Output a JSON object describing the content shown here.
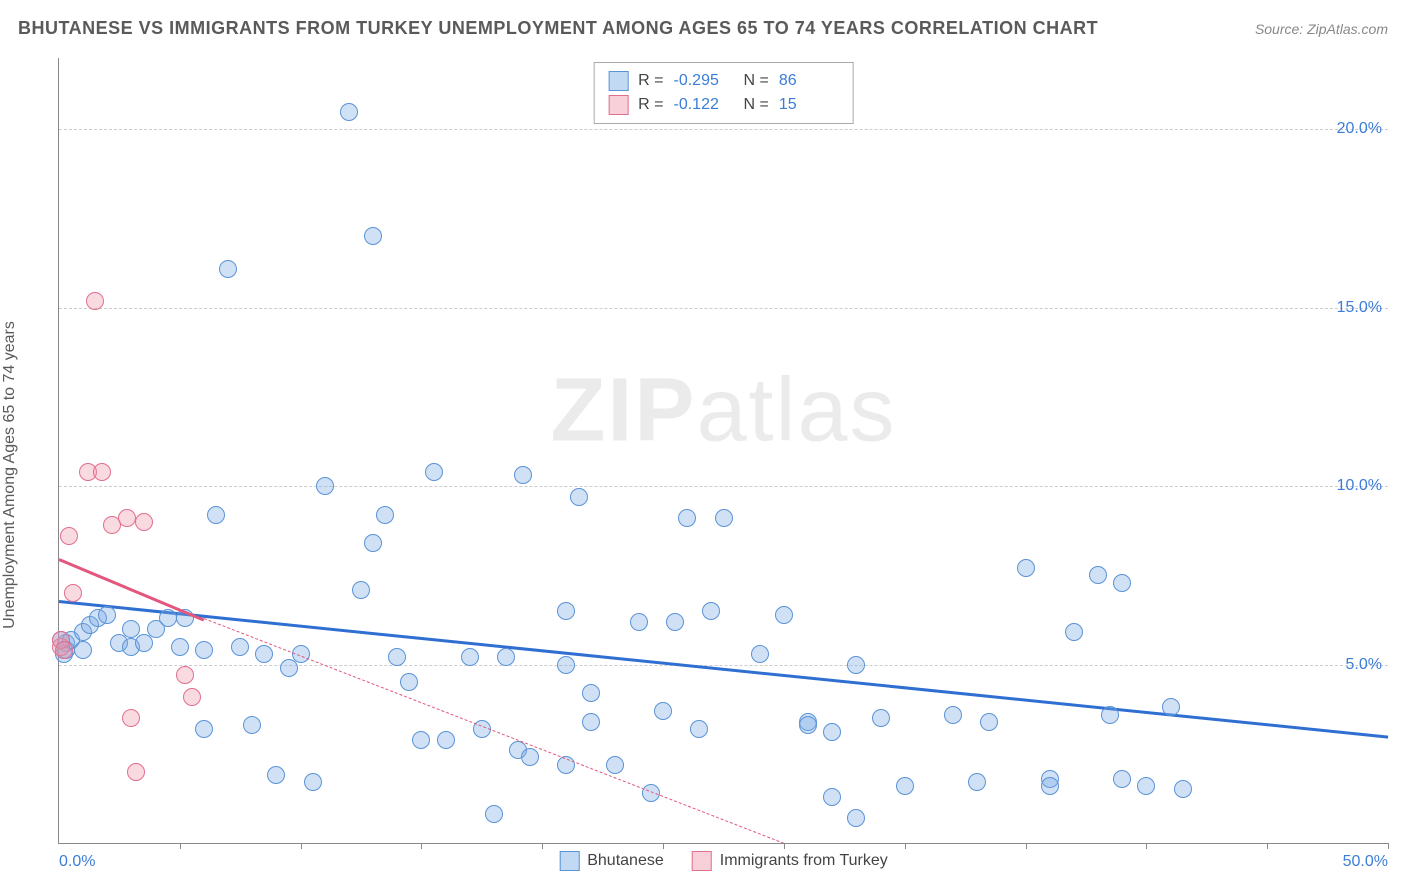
{
  "header": {
    "title": "BHUTANESE VS IMMIGRANTS FROM TURKEY UNEMPLOYMENT AMONG AGES 65 TO 74 YEARS CORRELATION CHART",
    "source": "Source: ZipAtlas.com"
  },
  "chart": {
    "type": "scatter",
    "y_axis_title": "Unemployment Among Ages 65 to 74 years",
    "watermark_a": "ZIP",
    "watermark_b": "atlas",
    "background_color": "#ffffff",
    "grid_color": "#cccccc",
    "axis_color": "#888888",
    "tick_label_color": "#3b7dd8",
    "xlim": [
      0,
      55
    ],
    "ylim": [
      0,
      22
    ],
    "x_ticks": [
      5,
      10,
      15,
      20,
      25,
      30,
      35,
      40,
      45,
      50,
      55
    ],
    "x_label_min": "0.0%",
    "x_label_max": "50.0%",
    "y_grid": [
      {
        "val": 5,
        "label": "5.0%"
      },
      {
        "val": 10,
        "label": "10.0%"
      },
      {
        "val": 15,
        "label": "15.0%"
      },
      {
        "val": 20,
        "label": "20.0%"
      }
    ],
    "marker_radius": 9,
    "marker_border_width": 1.5,
    "series": [
      {
        "name": "Bhutanese",
        "fill": "rgba(120,170,230,0.35)",
        "stroke": "#5a93d6",
        "trend_color": "#2e6fd1",
        "trend": {
          "x1": 0,
          "y1": 6.8,
          "x2": 55,
          "y2": 3.0,
          "solid": true
        },
        "trend_dash": null,
        "points": [
          [
            0.3,
            5.6
          ],
          [
            0.3,
            5.4
          ],
          [
            0.5,
            5.7
          ],
          [
            1,
            5.9
          ],
          [
            1,
            5.4
          ],
          [
            1.3,
            6.1
          ],
          [
            1.6,
            6.3
          ],
          [
            2,
            6.4
          ],
          [
            2.5,
            5.6
          ],
          [
            3,
            5.5
          ],
          [
            3,
            6.0
          ],
          [
            3.5,
            5.6
          ],
          [
            4,
            6.0
          ],
          [
            4.5,
            6.3
          ],
          [
            5,
            5.5
          ],
          [
            5.2,
            6.3
          ],
          [
            6,
            5.4
          ],
          [
            6,
            3.2
          ],
          [
            6.5,
            9.2
          ],
          [
            7,
            16.1
          ],
          [
            7.5,
            5.5
          ],
          [
            8,
            3.3
          ],
          [
            8.5,
            5.3
          ],
          [
            9,
            1.9
          ],
          [
            9.5,
            4.9
          ],
          [
            10,
            5.3
          ],
          [
            10.5,
            1.7
          ],
          [
            11,
            10.0
          ],
          [
            12,
            20.5
          ],
          [
            12.5,
            7.1
          ],
          [
            13,
            8.4
          ],
          [
            13,
            17.0
          ],
          [
            13.5,
            9.2
          ],
          [
            14,
            5.2
          ],
          [
            14.5,
            4.5
          ],
          [
            15,
            2.9
          ],
          [
            15.5,
            10.4
          ],
          [
            16,
            2.9
          ],
          [
            17,
            5.2
          ],
          [
            17.5,
            3.2
          ],
          [
            18,
            0.8
          ],
          [
            18.5,
            5.2
          ],
          [
            19,
            2.6
          ],
          [
            19.2,
            10.3
          ],
          [
            19.5,
            2.4
          ],
          [
            21,
            6.5
          ],
          [
            21,
            5.0
          ],
          [
            21,
            2.2
          ],
          [
            21.5,
            9.7
          ],
          [
            22,
            4.2
          ],
          [
            22,
            3.4
          ],
          [
            23,
            2.2
          ],
          [
            24,
            6.2
          ],
          [
            24.5,
            1.4
          ],
          [
            25,
            3.7
          ],
          [
            25.5,
            6.2
          ],
          [
            26,
            9.1
          ],
          [
            26.5,
            3.2
          ],
          [
            27,
            6.5
          ],
          [
            27.5,
            9.1
          ],
          [
            29,
            5.3
          ],
          [
            30,
            6.4
          ],
          [
            31,
            3.4
          ],
          [
            31,
            3.3
          ],
          [
            32,
            3.1
          ],
          [
            32,
            1.3
          ],
          [
            33,
            0.7
          ],
          [
            33,
            5.0
          ],
          [
            34,
            3.5
          ],
          [
            35,
            1.6
          ],
          [
            37,
            3.6
          ],
          [
            38,
            1.7
          ],
          [
            38.5,
            3.4
          ],
          [
            40,
            7.7
          ],
          [
            41,
            1.8
          ],
          [
            41,
            1.6
          ],
          [
            42,
            5.9
          ],
          [
            43,
            7.5
          ],
          [
            43.5,
            3.6
          ],
          [
            44,
            7.3
          ],
          [
            44,
            1.8
          ],
          [
            45,
            1.6
          ],
          [
            46,
            3.8
          ],
          [
            46.5,
            1.5
          ],
          [
            0.2,
            5.3
          ],
          [
            0.1,
            5.7
          ]
        ]
      },
      {
        "name": "Immigrants from Turkey",
        "fill": "rgba(240,150,170,0.35)",
        "stroke": "#e16f8e",
        "trend_color": "#e3567d",
        "trend": {
          "x1": 0,
          "y1": 8.0,
          "x2": 6,
          "y2": 6.3,
          "solid": true
        },
        "trend_dash": {
          "x1": 6,
          "y1": 6.3,
          "x2": 30,
          "y2": 0
        },
        "points": [
          [
            0.1,
            5.5
          ],
          [
            0.1,
            5.7
          ],
          [
            0.2,
            5.4
          ],
          [
            0.4,
            8.6
          ],
          [
            0.6,
            7.0
          ],
          [
            1.2,
            10.4
          ],
          [
            1.5,
            15.2
          ],
          [
            1.8,
            10.4
          ],
          [
            2.2,
            8.9
          ],
          [
            2.8,
            9.1
          ],
          [
            3.5,
            9.0
          ],
          [
            3.0,
            3.5
          ],
          [
            3.2,
            2.0
          ],
          [
            5.2,
            4.7
          ],
          [
            5.5,
            4.1
          ]
        ]
      }
    ],
    "stats_box": {
      "rows": [
        {
          "sq_fill": "rgba(120,170,230,0.45)",
          "sq_stroke": "#5a93d6",
          "r_label": "R =",
          "r_val": "-0.295",
          "n_label": "N =",
          "n_val": "86"
        },
        {
          "sq_fill": "rgba(240,150,170,0.45)",
          "sq_stroke": "#e16f8e",
          "r_label": "R =",
          "r_val": "-0.122",
          "n_label": "N =",
          "n_val": "15"
        }
      ]
    },
    "bottom_legend": [
      {
        "sq_fill": "rgba(120,170,230,0.45)",
        "sq_stroke": "#5a93d6",
        "label": "Bhutanese"
      },
      {
        "sq_fill": "rgba(240,150,170,0.45)",
        "sq_stroke": "#e16f8e",
        "label": "Immigrants from Turkey"
      }
    ]
  }
}
